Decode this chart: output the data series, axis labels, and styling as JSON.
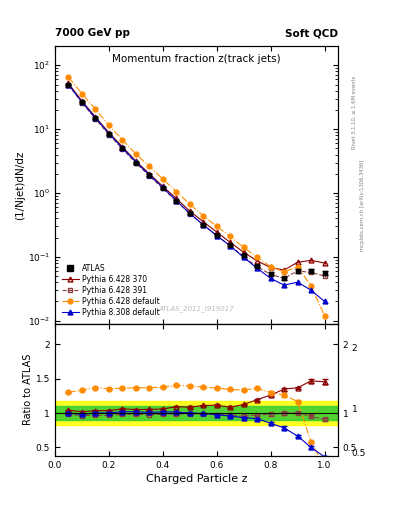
{
  "title": "Momentum fraction z(track jets)",
  "top_left_label": "7000 GeV pp",
  "top_right_label": "Soft QCD",
  "ylabel_main": "(1/Njet)dN/dz",
  "ylabel_ratio": "Ratio to ATLAS",
  "xlabel": "Charged Particle z",
  "watermark": "ATLAS_2011_I919017",
  "right_label_top": "Rivet 3.1.10, ≥ 1.6M events",
  "right_label_bot": "mcplots.cern.ch [arXiv:1306.3436]",
  "z_centers": [
    0.05,
    0.1,
    0.15,
    0.2,
    0.25,
    0.3,
    0.35,
    0.4,
    0.45,
    0.5,
    0.55,
    0.6,
    0.65,
    0.7,
    0.75,
    0.8,
    0.85,
    0.9,
    0.95,
    1.0
  ],
  "atlas_y": [
    50.0,
    27.0,
    15.0,
    8.5,
    5.0,
    3.0,
    1.9,
    1.2,
    0.75,
    0.48,
    0.32,
    0.22,
    0.155,
    0.105,
    0.072,
    0.054,
    0.046,
    0.06,
    0.06,
    0.055
  ],
  "atlas_yerr": [
    1.5,
    0.8,
    0.5,
    0.28,
    0.17,
    0.1,
    0.06,
    0.04,
    0.025,
    0.016,
    0.011,
    0.008,
    0.006,
    0.004,
    0.003,
    0.003,
    0.003,
    0.004,
    0.004,
    0.004
  ],
  "p6_370_y": [
    52.0,
    27.5,
    15.5,
    8.8,
    5.3,
    3.15,
    2.0,
    1.27,
    0.82,
    0.52,
    0.355,
    0.245,
    0.168,
    0.118,
    0.086,
    0.068,
    0.062,
    0.082,
    0.088,
    0.08
  ],
  "p6_370_yerr": [
    0.5,
    0.3,
    0.15,
    0.09,
    0.05,
    0.03,
    0.02,
    0.013,
    0.009,
    0.006,
    0.004,
    0.003,
    0.002,
    0.0015,
    0.001,
    0.001,
    0.001,
    0.001,
    0.002,
    0.002
  ],
  "p6_391_y": [
    49.0,
    26.0,
    14.5,
    8.2,
    4.9,
    2.95,
    1.85,
    1.18,
    0.74,
    0.475,
    0.315,
    0.215,
    0.15,
    0.1,
    0.07,
    0.053,
    0.046,
    0.06,
    0.057,
    0.05
  ],
  "p6_391_yerr": [
    0.4,
    0.25,
    0.13,
    0.08,
    0.05,
    0.03,
    0.018,
    0.012,
    0.008,
    0.005,
    0.003,
    0.002,
    0.002,
    0.0012,
    0.001,
    0.001,
    0.001,
    0.001,
    0.001,
    0.001
  ],
  "p6_def_y": [
    65.0,
    36.0,
    20.5,
    11.5,
    6.8,
    4.1,
    2.6,
    1.65,
    1.05,
    0.67,
    0.44,
    0.3,
    0.208,
    0.14,
    0.098,
    0.07,
    0.058,
    0.07,
    0.035,
    0.012
  ],
  "p6_def_yerr": [
    0.6,
    0.35,
    0.2,
    0.11,
    0.07,
    0.04,
    0.025,
    0.016,
    0.011,
    0.007,
    0.005,
    0.003,
    0.002,
    0.0015,
    0.001,
    0.001,
    0.001,
    0.001,
    0.001,
    0.001
  ],
  "p8_def_y": [
    50.0,
    26.5,
    15.0,
    8.5,
    5.1,
    3.05,
    1.92,
    1.22,
    0.76,
    0.48,
    0.318,
    0.215,
    0.148,
    0.098,
    0.066,
    0.046,
    0.036,
    0.04,
    0.03,
    0.02
  ],
  "p8_def_yerr": [
    0.45,
    0.25,
    0.13,
    0.08,
    0.05,
    0.03,
    0.018,
    0.012,
    0.008,
    0.005,
    0.003,
    0.002,
    0.002,
    0.0012,
    0.001,
    0.001,
    0.001,
    0.001,
    0.001,
    0.001
  ],
  "atlas_color": "#000000",
  "p6_370_color": "#8B0000",
  "p6_391_color": "#8B4040",
  "p6_def_color": "#FF8C00",
  "p8_def_color": "#0000CD",
  "band_yellow_lo": 0.82,
  "band_yellow_hi": 1.18,
  "band_green_lo": 0.9,
  "band_green_hi": 1.1,
  "ylim_main": [
    0.009,
    200
  ],
  "ylim_ratio": [
    0.38,
    2.3
  ],
  "xlim": [
    0.0,
    1.05
  ]
}
